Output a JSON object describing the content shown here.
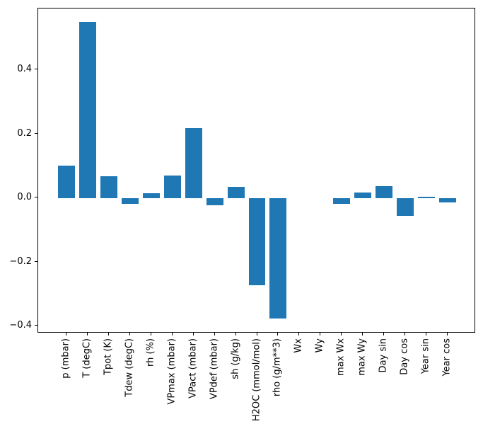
{
  "chart_data": {
    "type": "bar",
    "title": "",
    "xlabel": "",
    "ylabel": "",
    "categories": [
      "p (mbar)",
      "T (degC)",
      "Tpot (K)",
      "Tdew (degC)",
      "rh (%)",
      "VPmax (mbar)",
      "VPact (mbar)",
      "VPdef (mbar)",
      "sh (g/kg)",
      "H2OC (mmol/mol)",
      "rho (g/m**3)",
      "Wx",
      "Wy",
      "max Wx",
      "max Wy",
      "Day sin",
      "Day cos",
      "Year sin",
      "Year cos"
    ],
    "values": [
      0.101,
      0.55,
      0.067,
      -0.018,
      0.014,
      0.07,
      0.218,
      -0.023,
      0.035,
      -0.273,
      -0.377,
      0.0,
      0.0,
      -0.018,
      0.018,
      0.036,
      -0.057,
      0.004,
      -0.014
    ],
    "bar_color": "#1f77b4",
    "bar_width": 0.8,
    "xlim": [
      -1.34,
      19.34
    ],
    "ylim": [
      -0.423,
      0.592
    ],
    "grid": false,
    "legend_position": "none",
    "yticks": [
      {
        "value": 0.4,
        "label": "0.4"
      },
      {
        "value": 0.2,
        "label": "0.2"
      },
      {
        "value": 0.0,
        "label": "0.0"
      },
      {
        "value": -0.2,
        "label": "−0.2"
      },
      {
        "value": -0.4,
        "label": "−0.4"
      }
    ]
  }
}
